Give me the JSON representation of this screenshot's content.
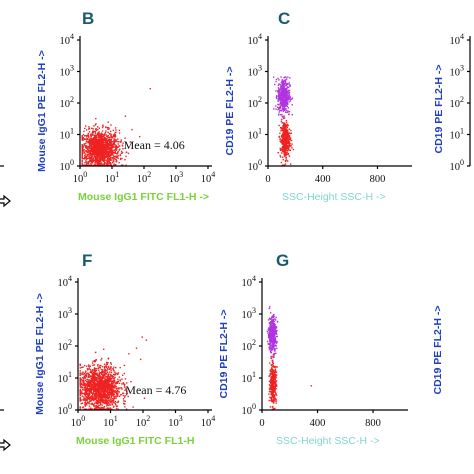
{
  "chart_data": [
    {
      "type": "scatter",
      "panel": "B",
      "xlabel": "Mouse IgG1 FITC FL1-H ->",
      "ylabel": "Mouse IgG1 PE FL2-H ->",
      "xscale": "log",
      "yscale": "log",
      "xlim": [
        1,
        10000
      ],
      "ylim": [
        1,
        10000
      ],
      "x_ticks": [
        {
          "base": "10",
          "exp": "0",
          "v": 1
        },
        {
          "base": "10",
          "exp": "1",
          "v": 10
        },
        {
          "base": "10",
          "exp": "2",
          "v": 100
        },
        {
          "base": "10",
          "exp": "3",
          "v": 1000
        },
        {
          "base": "10",
          "exp": "4",
          "v": 10000
        }
      ],
      "y_ticks": [
        {
          "base": "10",
          "exp": "0",
          "v": 1
        },
        {
          "base": "10",
          "exp": "1",
          "v": 10
        },
        {
          "base": "10",
          "exp": "2",
          "v": 100
        },
        {
          "base": "10",
          "exp": "3",
          "v": 1000
        },
        {
          "base": "10",
          "exp": "4",
          "v": 10000
        }
      ],
      "annotation": "Mean = 4.06",
      "annotation_at": [
        150,
        3.5
      ],
      "clusters": [
        {
          "color": "#ee2222",
          "count": 1400,
          "cx": 4,
          "cy": 3.5,
          "sx": 0.3,
          "sy": 0.3
        }
      ],
      "outliers": [
        [
          40,
          15
        ],
        [
          70,
          9
        ],
        [
          150,
          300
        ],
        [
          25,
          40
        ]
      ]
    },
    {
      "type": "scatter",
      "panel": "C",
      "xlabel": "SSC-Height SSC-H ->",
      "ylabel": "CD19 PE FL2-H ->",
      "xscale": "linear",
      "yscale": "log",
      "xlim": [
        0,
        1023
      ],
      "ylim": [
        1,
        10000
      ],
      "x_ticks": [
        {
          "text": "0",
          "v": 0
        },
        {
          "text": "400",
          "v": 400
        },
        {
          "text": "800",
          "v": 800
        }
      ],
      "y_ticks": [
        {
          "base": "10",
          "exp": "0",
          "v": 1
        },
        {
          "base": "10",
          "exp": "1",
          "v": 10
        },
        {
          "base": "10",
          "exp": "2",
          "v": 100
        },
        {
          "base": "10",
          "exp": "3",
          "v": 1000
        },
        {
          "base": "10",
          "exp": "4",
          "v": 10000
        }
      ],
      "clusters": [
        {
          "color": "#b033e0",
          "count": 450,
          "cx": 110,
          "cy": 180,
          "sx": 22,
          "sy": 0.28
        },
        {
          "color": "#ee2222",
          "count": 380,
          "cx": 120,
          "cy": 7,
          "sx": 18,
          "sy": 0.3
        }
      ],
      "outliers": []
    },
    {
      "type": "scatter",
      "panel": "F",
      "xlabel": "Mouse IgG1 FITC FL1-H",
      "ylabel": "Mouse IgG1 PE FL2-H ->",
      "xscale": "log",
      "yscale": "log",
      "xlim": [
        1,
        10000
      ],
      "ylim": [
        1,
        10000
      ],
      "x_ticks": [
        {
          "base": "10",
          "exp": "0",
          "v": 1
        },
        {
          "base": "10",
          "exp": "1",
          "v": 10
        },
        {
          "base": "10",
          "exp": "2",
          "v": 100
        },
        {
          "base": "10",
          "exp": "3",
          "v": 1000
        },
        {
          "base": "10",
          "exp": "4",
          "v": 10000
        }
      ],
      "y_ticks": [
        {
          "base": "10",
          "exp": "0",
          "v": 1
        },
        {
          "base": "10",
          "exp": "1",
          "v": 10
        },
        {
          "base": "10",
          "exp": "2",
          "v": 100
        },
        {
          "base": "10",
          "exp": "3",
          "v": 1000
        },
        {
          "base": "10",
          "exp": "4",
          "v": 10000
        }
      ],
      "annotation": "Mean = 4.76",
      "annotation_at": [
        180,
        3.2
      ],
      "clusters": [
        {
          "color": "#ee2222",
          "count": 1500,
          "cx": 4.5,
          "cy": 5,
          "sx": 0.32,
          "sy": 0.34
        }
      ],
      "outliers": [
        [
          60,
          90
        ],
        [
          90,
          200
        ],
        [
          120,
          160
        ],
        [
          35,
          60
        ],
        [
          80,
          40
        ]
      ]
    },
    {
      "type": "scatter",
      "panel": "G",
      "xlabel": "SSC-Height SSC-H ->",
      "ylabel": "CD19 PE FL2-H ->",
      "xscale": "linear",
      "yscale": "log",
      "xlim": [
        0,
        1023
      ],
      "ylim": [
        1,
        10000
      ],
      "x_ticks": [
        {
          "text": "0",
          "v": 0
        },
        {
          "text": "400",
          "v": 400
        },
        {
          "text": "800",
          "v": 800
        }
      ],
      "y_ticks": [
        {
          "base": "10",
          "exp": "0",
          "v": 1
        },
        {
          "base": "10",
          "exp": "1",
          "v": 10
        },
        {
          "base": "10",
          "exp": "2",
          "v": 100
        },
        {
          "base": "10",
          "exp": "3",
          "v": 1000
        },
        {
          "base": "10",
          "exp": "4",
          "v": 10000
        }
      ],
      "clusters": [
        {
          "color": "#b033e0",
          "count": 400,
          "cx": 70,
          "cy": 250,
          "sx": 15,
          "sy": 0.28
        },
        {
          "color": "#ee2222",
          "count": 360,
          "cx": 75,
          "cy": 7,
          "sx": 12,
          "sy": 0.3
        }
      ],
      "outliers": [
        [
          350,
          6
        ]
      ]
    }
  ],
  "partial_panels": {
    "right_top_ylabel": "CD19 PE FL2-H ->",
    "right_top_ticks": [
      {
        "base": "10",
        "exp": "0"
      },
      {
        "base": "10",
        "exp": "1"
      },
      {
        "base": "10",
        "exp": "2"
      },
      {
        "base": "10",
        "exp": "3"
      },
      {
        "base": "10",
        "exp": "4"
      }
    ],
    "right_bottom_ylabel": "CD19 PE FL2-H ->"
  }
}
